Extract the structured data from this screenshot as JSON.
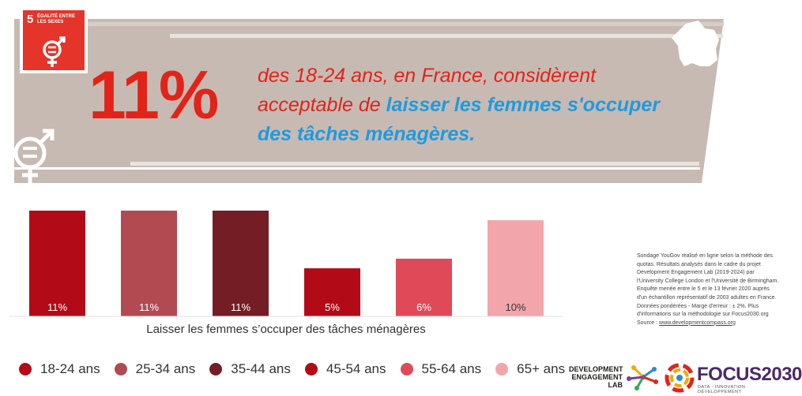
{
  "sdg": {
    "number": "5",
    "label": "ÉGALITÉ ENTRE LES SEXES"
  },
  "headline": {
    "percent": "11%",
    "text_part1": "des 18-24 ans, en France, considèrent acceptable de ",
    "text_highlight": "laisser les femmes s'occuper des tâches ménagères."
  },
  "chart_data": {
    "type": "bar",
    "categories": [
      "18-24 ans",
      "25-34 ans",
      "35-44 ans",
      "45-54 ans",
      "55-64 ans",
      "65+ ans"
    ],
    "values": [
      11,
      11,
      11,
      5,
      6,
      10
    ],
    "data_labels": [
      "11%",
      "11%",
      "11%",
      "5%",
      "6%",
      "10%"
    ],
    "colors": [
      "#b20b17",
      "#b24a52",
      "#741d24",
      "#b20b17",
      "#e04a58",
      "#f2a5ab"
    ],
    "xlabel": "Laisser les femmes s’occuper des tâches ménagères",
    "ylim": [
      0,
      11
    ],
    "legend_position": "bottom"
  },
  "legend": [
    {
      "label": "18-24 ans",
      "color": "#b20b17"
    },
    {
      "label": "25-34 ans",
      "color": "#b24a52"
    },
    {
      "label": "35-44 ans",
      "color": "#741d24"
    },
    {
      "label": "45-54 ans",
      "color": "#b20b17"
    },
    {
      "label": "55-64 ans",
      "color": "#e04a58"
    },
    {
      "label": "65+ ans",
      "color": "#f2a5ab"
    }
  ],
  "source": {
    "text": "Sondage YouGov réalisé en ligne selon la méthode des quotas. Résultats analysés dans le cadre du projet Development Engagement Lab (2019-2024) par l'University College London et l'Université de Birmingham. Enquête menée entre le 5 et le 13 février 2020 auprès d'un échantillon représentatif de 2003 adultes en France. Données pondérées - Marge d'erreur : ± 2%. Plus d'informations sur la méthodologie sur Focus2030.org",
    "source_prefix": "Source :",
    "url": "www.developmentcompass.org"
  },
  "logos": {
    "del_line1": "DEVELOPMENT",
    "del_line2": "ENGAGEMENT",
    "del_line3": "LAB",
    "focus_name": "FOCUS2030",
    "focus_tagline": "DATA · INNOVATION · DÉVELOPPEMENT"
  },
  "theme": {
    "banner_bg": "#c7bab2",
    "accent_red": "#e2231a",
    "accent_blue": "#1e9be0"
  }
}
